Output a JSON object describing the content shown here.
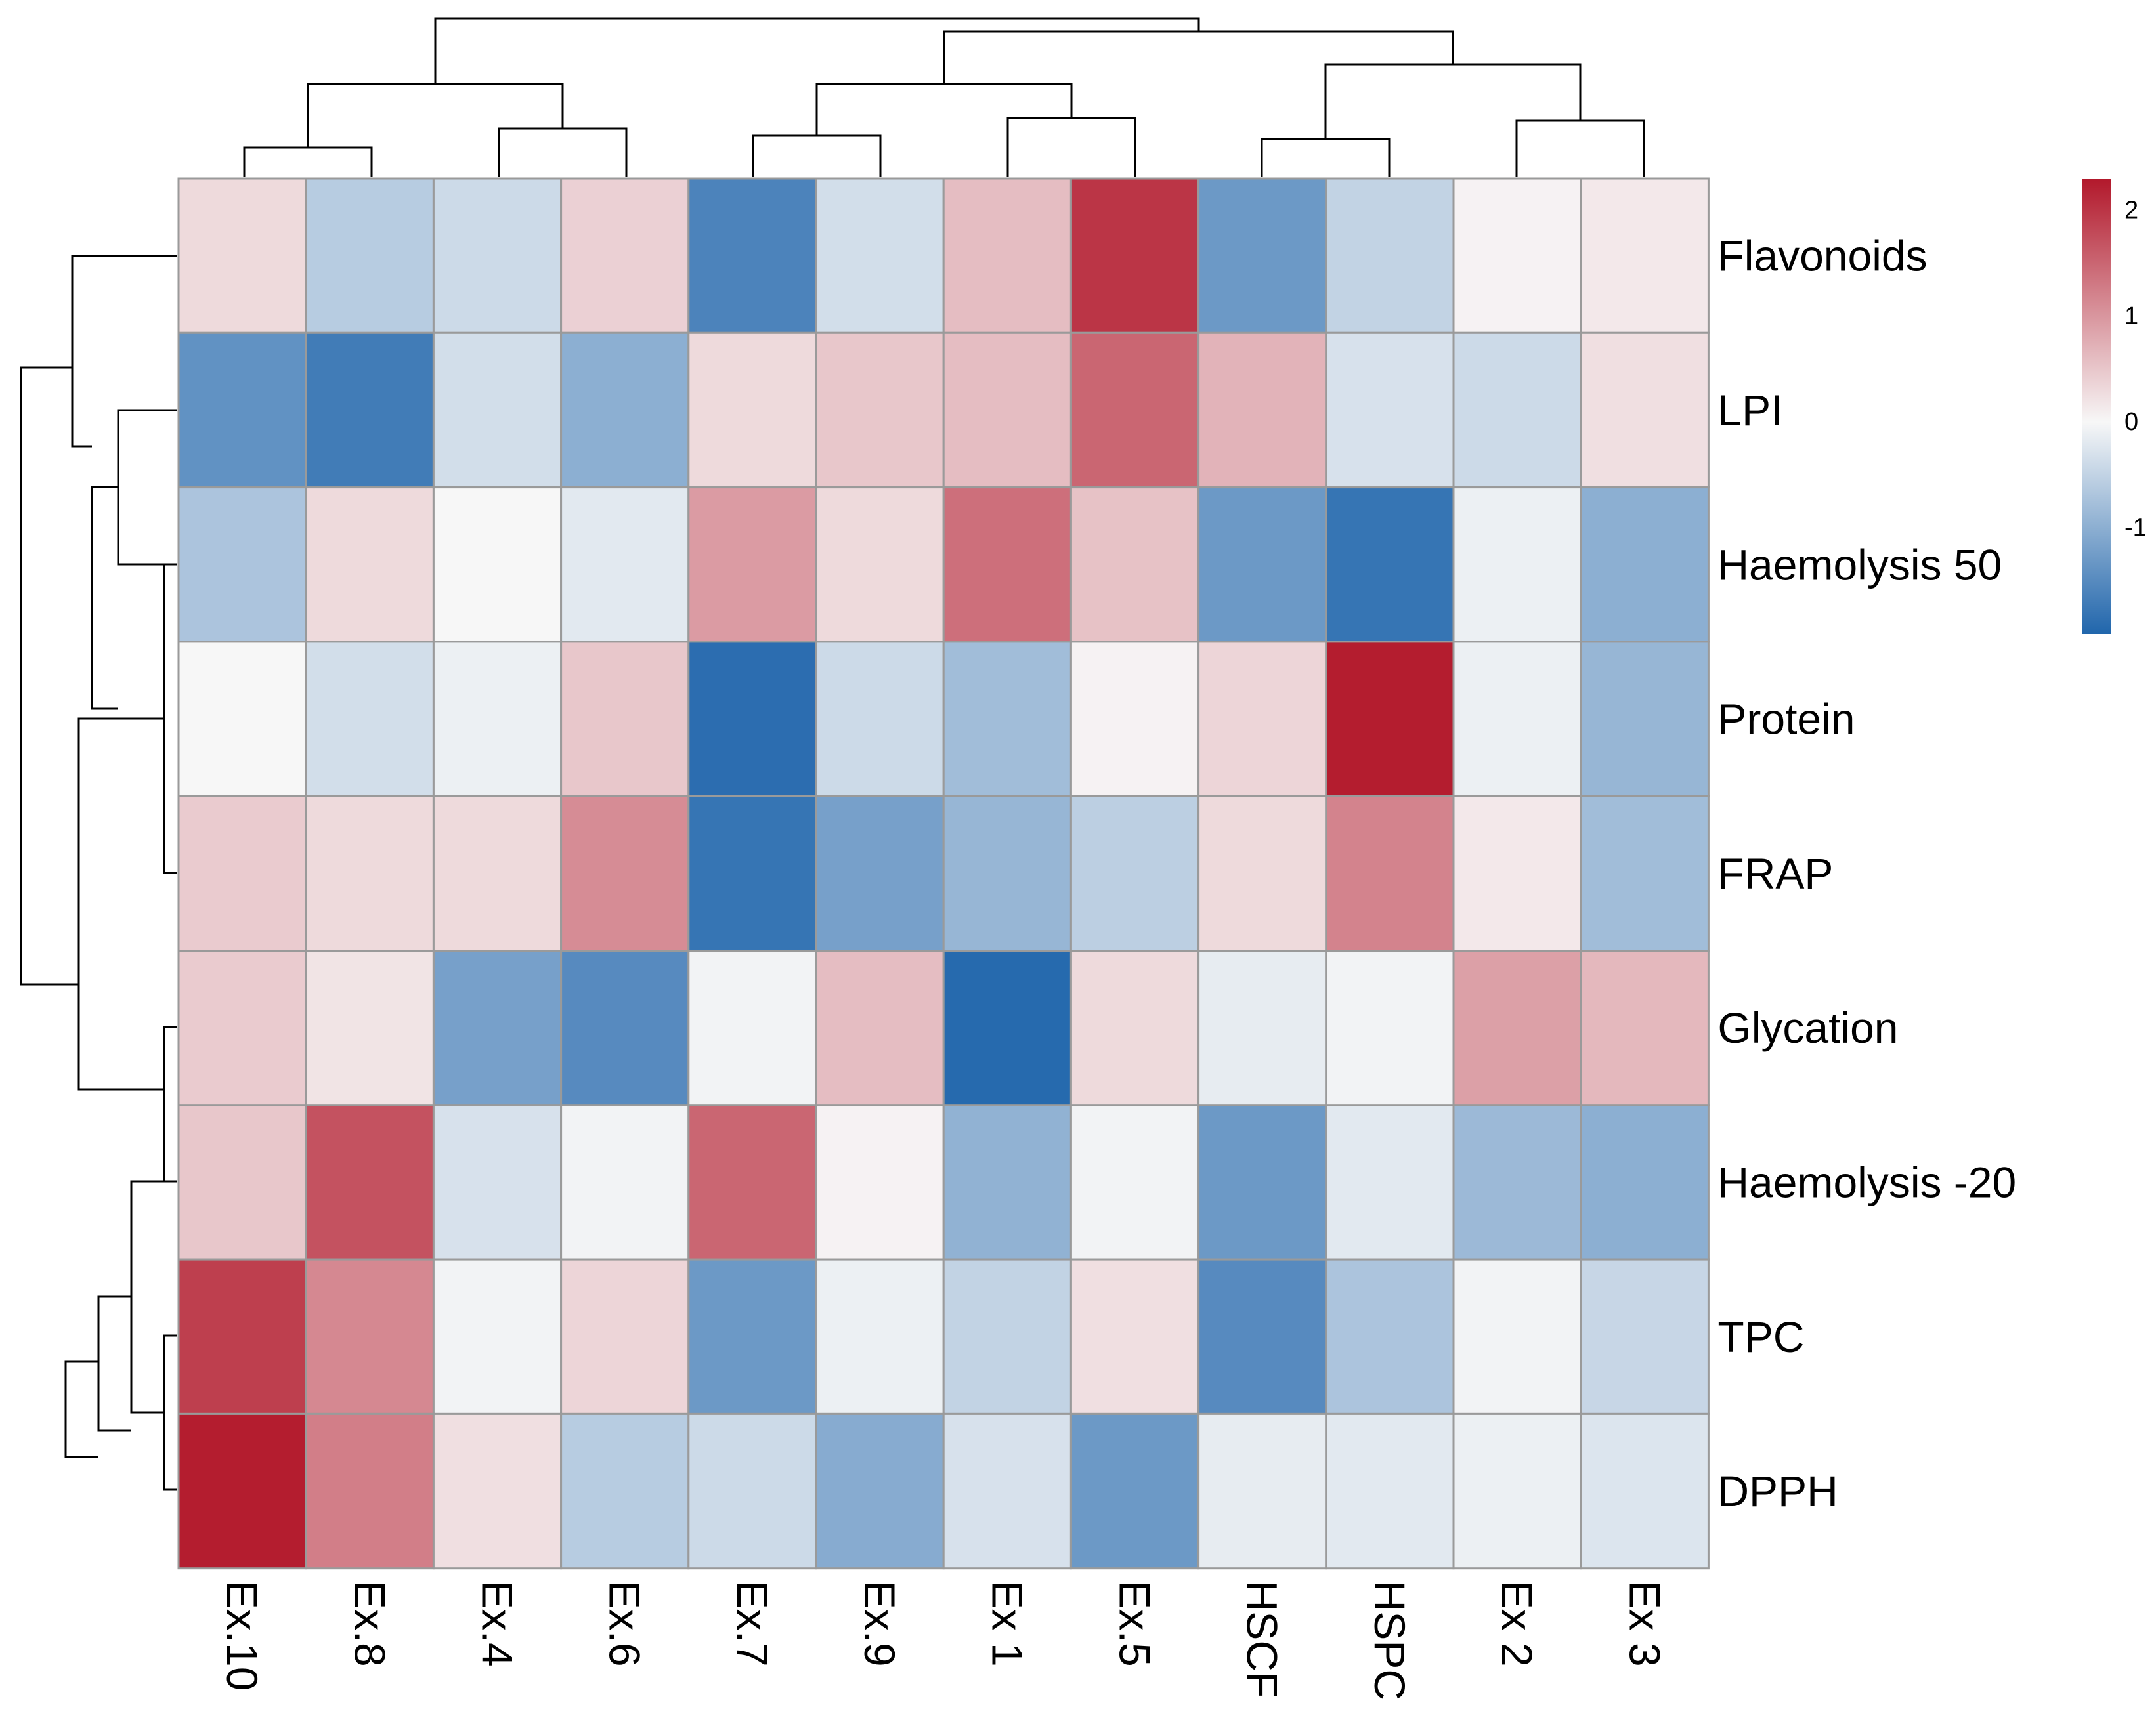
{
  "chart_data": {
    "type": "heatmap",
    "title": "",
    "columns": [
      "Ex.10",
      "Ex.8",
      "Ex.4",
      "Ex.6",
      "Ex.7",
      "Ex.9",
      "Ex 1",
      "Ex.5",
      "HSCF",
      "HSPC",
      "Ex 2",
      "Ex 3"
    ],
    "rows": [
      "Flavonoids",
      "LPI",
      "Haemolysis 50",
      "Protein",
      "FRAP",
      "Glycation",
      "Haemolysis -20",
      "TPC",
      "DPPH"
    ],
    "values": [
      [
        0.3,
        -0.6,
        -0.4,
        0.4,
        -1.6,
        -0.35,
        0.6,
        2.0,
        -1.3,
        -0.5,
        0.05,
        0.15
      ],
      [
        -1.4,
        -1.7,
        -0.35,
        -1.0,
        0.3,
        0.5,
        0.6,
        1.5,
        0.7,
        -0.3,
        -0.4,
        0.25
      ],
      [
        -0.7,
        0.3,
        0.0,
        -0.2,
        0.95,
        0.3,
        1.4,
        0.55,
        -1.3,
        -1.8,
        -0.1,
        -1.0
      ],
      [
        0.0,
        -0.35,
        -0.1,
        0.5,
        -1.9,
        -0.4,
        -0.8,
        0.05,
        0.35,
        2.25,
        -0.1,
        -0.9
      ],
      [
        0.45,
        0.3,
        0.3,
        1.1,
        -1.8,
        -1.2,
        -0.9,
        -0.55,
        0.3,
        1.2,
        0.15,
        -0.8
      ],
      [
        0.45,
        0.2,
        -1.2,
        -1.5,
        -0.05,
        0.6,
        -1.95,
        0.3,
        -0.15,
        -0.05,
        0.9,
        0.65
      ],
      [
        0.5,
        1.7,
        -0.3,
        -0.05,
        1.5,
        0.05,
        -0.95,
        -0.05,
        -1.3,
        -0.2,
        -0.85,
        -1.0
      ],
      [
        1.9,
        1.15,
        -0.05,
        0.35,
        -1.3,
        -0.1,
        -0.5,
        0.25,
        -1.5,
        -0.7,
        -0.05,
        -0.45
      ],
      [
        2.25,
        1.25,
        0.25,
        -0.6,
        -0.4,
        -1.05,
        -0.3,
        -1.3,
        -0.15,
        -0.2,
        -0.1,
        -0.25
      ]
    ],
    "color_scale": {
      "min": -2.0,
      "max": 2.3,
      "low": "#2166ac",
      "mid": "#f7f7f7",
      "high": "#b2182b",
      "ticks": [
        2,
        1,
        0,
        -1
      ]
    },
    "tick_labels": [
      "2",
      "1",
      "0",
      "-1"
    ]
  }
}
